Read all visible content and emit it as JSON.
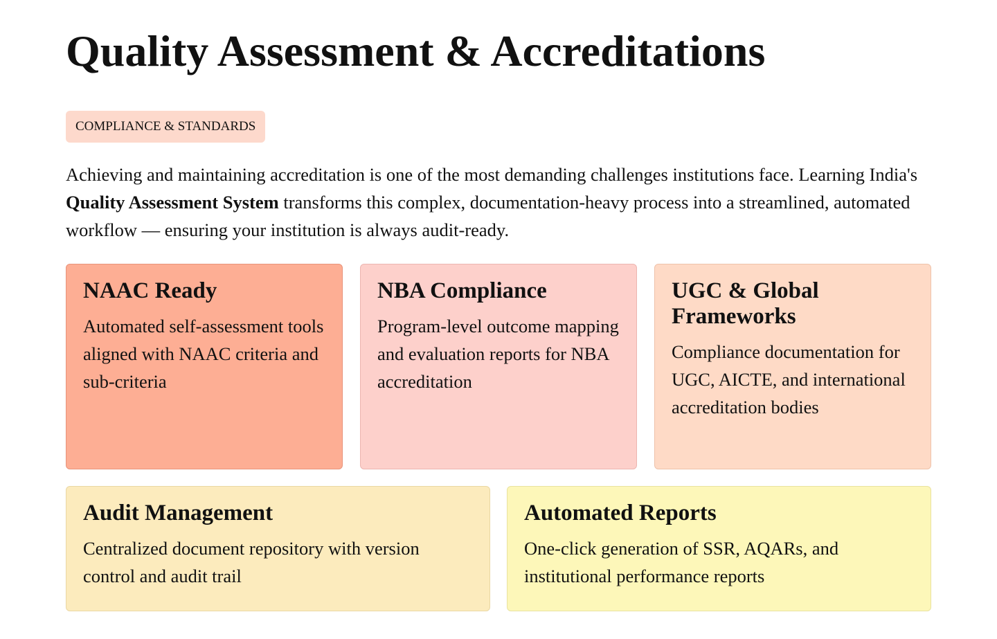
{
  "header": {
    "title": "Quality Assessment & Accreditations",
    "tag": "COMPLIANCE & STANDARDS"
  },
  "intro": {
    "before": "Achieving and maintaining accreditation is one of the most demanding challenges institutions face. Learning India's ",
    "bold": "Quality Assessment System",
    "after": " transforms this complex, documentation-heavy process into a streamlined, automated workflow — ensuring your institution is always audit-ready."
  },
  "cards": [
    {
      "title": "NAAC Ready",
      "text": "Automated self-assessment tools aligned with NAAC criteria and sub-criteria"
    },
    {
      "title": "NBA Compliance",
      "text": "Program-level outcome mapping and evaluation reports for NBA accreditation"
    },
    {
      "title": "UGC & Global Frameworks",
      "text": "Compliance documentation for UGC, AICTE, and international accreditation bodies"
    },
    {
      "title": "Audit Management",
      "text": "Centralized document repository with version control and audit trail"
    },
    {
      "title": "Automated Reports",
      "text": "One-click generation of SSR, AQARs, and institutional performance reports"
    }
  ]
}
